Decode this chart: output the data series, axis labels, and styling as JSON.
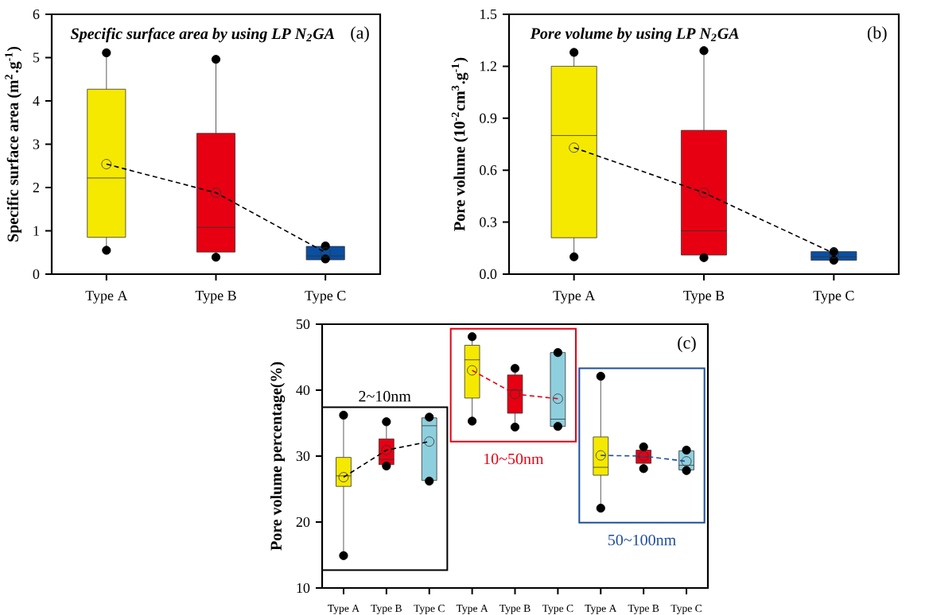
{
  "chart_data": [
    {
      "type": "box",
      "title": "Specific surface area by using LP N$_{2}$GA",
      "ylabel": "Specific surface area (m$^{2}$.g$^{-1}$)",
      "categories": [
        "Type A",
        "Type B",
        "Type C"
      ],
      "ylim": [
        0,
        6
      ],
      "yticks": [
        0,
        1,
        2,
        3,
        4,
        5,
        6
      ],
      "annotations": [
        "(a)"
      ],
      "series": [
        {
          "colors": [
            "#f5e900",
            "#e60012",
            "#0a4fa0"
          ],
          "boxes": [
            {
              "low": 0.55,
              "q1": 0.85,
              "median": 2.22,
              "q3": 4.27,
              "high": 5.11,
              "mean": 2.54,
              "outliers": [
                5.11,
                0.55
              ]
            },
            {
              "low": 0.39,
              "q1": 0.51,
              "median": 1.08,
              "q3": 3.25,
              "high": 4.96,
              "mean": 1.88,
              "outliers": [
                4.96,
                0.39
              ]
            },
            {
              "low": 0.33,
              "q1": 0.33,
              "median": 0.42,
              "q3": 0.64,
              "high": 0.65,
              "mean": 0.5,
              "outliers": [
                0.65,
                0.35
              ]
            }
          ]
        },
        {
          "type": "line",
          "color": "#000000",
          "line_style": "dashed",
          "marker": "none",
          "values": [
            2.54,
            1.88,
            0.5
          ]
        }
      ]
    },
    {
      "type": "box",
      "title": "Pore volume by using LP N$_{2}$GA",
      "ylabel": "Pore volume (10$^{-2}$cm$^{3}$.g$^{-1}$)",
      "categories": [
        "Type A",
        "Type B",
        "Type C"
      ],
      "ylim": [
        0,
        1.5
      ],
      "yticks": [
        {
          "value": 0,
          "label": "0.0"
        },
        0.3,
        0.6,
        0.9,
        1.2,
        1.5
      ],
      "annotations": [
        "(b)"
      ],
      "series": [
        {
          "colors": [
            "#f5e900",
            "#e60012",
            "#0a4fa0"
          ],
          "boxes": [
            {
              "low": 0.1,
              "q1": 0.21,
              "median": 0.8,
              "q3": 1.2,
              "high": 1.28,
              "mean": 0.73,
              "outliers": [
                1.28,
                0.1
              ]
            },
            {
              "low": 0.095,
              "q1": 0.11,
              "median": 0.25,
              "q3": 0.83,
              "high": 1.29,
              "mean": 0.47,
              "outliers": [
                1.29,
                0.095
              ]
            },
            {
              "low": 0.08,
              "q1": 0.08,
              "median": 0.1,
              "q3": 0.13,
              "high": 0.13,
              "mean": 0.12,
              "outliers": [
                0.13,
                0.08
              ]
            }
          ]
        },
        {
          "type": "line",
          "color": "#000000",
          "line_style": "dashed",
          "marker": "none",
          "values": [
            0.73,
            0.47,
            0.12
          ]
        }
      ]
    },
    {
      "type": "box",
      "ylabel": "Pore volume percentage(%)",
      "categories": [
        "Type A",
        "Type B",
        "Type C",
        "Type A",
        "Type B",
        "Type C",
        "Type A",
        "Type B",
        "Type C"
      ],
      "ylim": [
        10,
        50
      ],
      "yticks": [
        10,
        20,
        30,
        40,
        50
      ],
      "annotations": [
        "(c)",
        "2~10nm",
        "10~50nm",
        "50~100nm"
      ],
      "series": [
        {
          "colors": [
            "#f5e900",
            "#e60012",
            "#8ecfde",
            "#f5e900",
            "#e60012",
            "#8ecfde",
            "#f5e900",
            "#e60012",
            "#8ecfde"
          ],
          "boxes": [
            {
              "low": 14.9,
              "q1": 25.4,
              "median": 27.0,
              "q3": 29.8,
              "high": 36.2,
              "mean": 26.8,
              "outliers": [
                36.2,
                14.9
              ]
            },
            {
              "low": 28.5,
              "q1": 28.7,
              "median": 29.5,
              "q3": 32.6,
              "high": 35.2,
              "mean": 30.9,
              "outliers": [
                35.2,
                28.5
              ]
            },
            {
              "low": 26.2,
              "q1": 26.3,
              "median": 34.6,
              "q3": 35.8,
              "high": 35.9,
              "mean": 32.2,
              "outliers": [
                35.9,
                26.2
              ]
            },
            {
              "low": 35.3,
              "q1": 38.8,
              "median": 44.6,
              "q3": 46.8,
              "high": 48.1,
              "mean": 43.0,
              "outliers": [
                48.1,
                35.3
              ]
            },
            {
              "low": 34.4,
              "q1": 36.5,
              "median": 40.0,
              "q3": 42.3,
              "high": 43.3,
              "mean": 39.4,
              "outliers": [
                43.3,
                34.4
              ]
            },
            {
              "low": 34.5,
              "q1": 34.5,
              "median": 35.6,
              "q3": 45.7,
              "high": 45.7,
              "mean": 38.7,
              "outliers": [
                45.7,
                34.5
              ]
            },
            {
              "low": 22.1,
              "q1": 27.1,
              "median": 28.3,
              "q3": 32.9,
              "high": 42.1,
              "mean": 30.1,
              "outliers": [
                42.1,
                22.1
              ]
            },
            {
              "low": 28.1,
              "q1": 28.9,
              "median": 29.9,
              "q3": 30.9,
              "high": 31.4,
              "mean": 30.0,
              "outliers": [
                31.4,
                28.1
              ]
            },
            {
              "low": 27.8,
              "q1": 27.9,
              "median": 28.6,
              "q3": 30.8,
              "high": 30.9,
              "mean": 29.2,
              "outliers": [
                30.9,
                27.8
              ]
            }
          ]
        },
        {
          "type": "line",
          "color": "#000000",
          "line_style": "dashed",
          "marker": "none",
          "values": [
            26.8,
            30.9,
            32.2,
            null,
            null,
            null,
            null,
            null,
            null
          ]
        },
        {
          "type": "line",
          "color": "#e60012",
          "line_style": "dashed",
          "marker": "none",
          "values": [
            null,
            null,
            null,
            43.0,
            39.4,
            38.7,
            null,
            null,
            null
          ]
        },
        {
          "type": "line",
          "color": "#1f4e9c",
          "line_style": "dashed",
          "marker": "none",
          "values": [
            null,
            null,
            null,
            null,
            null,
            null,
            30.1,
            30.0,
            29.2
          ]
        }
      ]
    }
  ]
}
